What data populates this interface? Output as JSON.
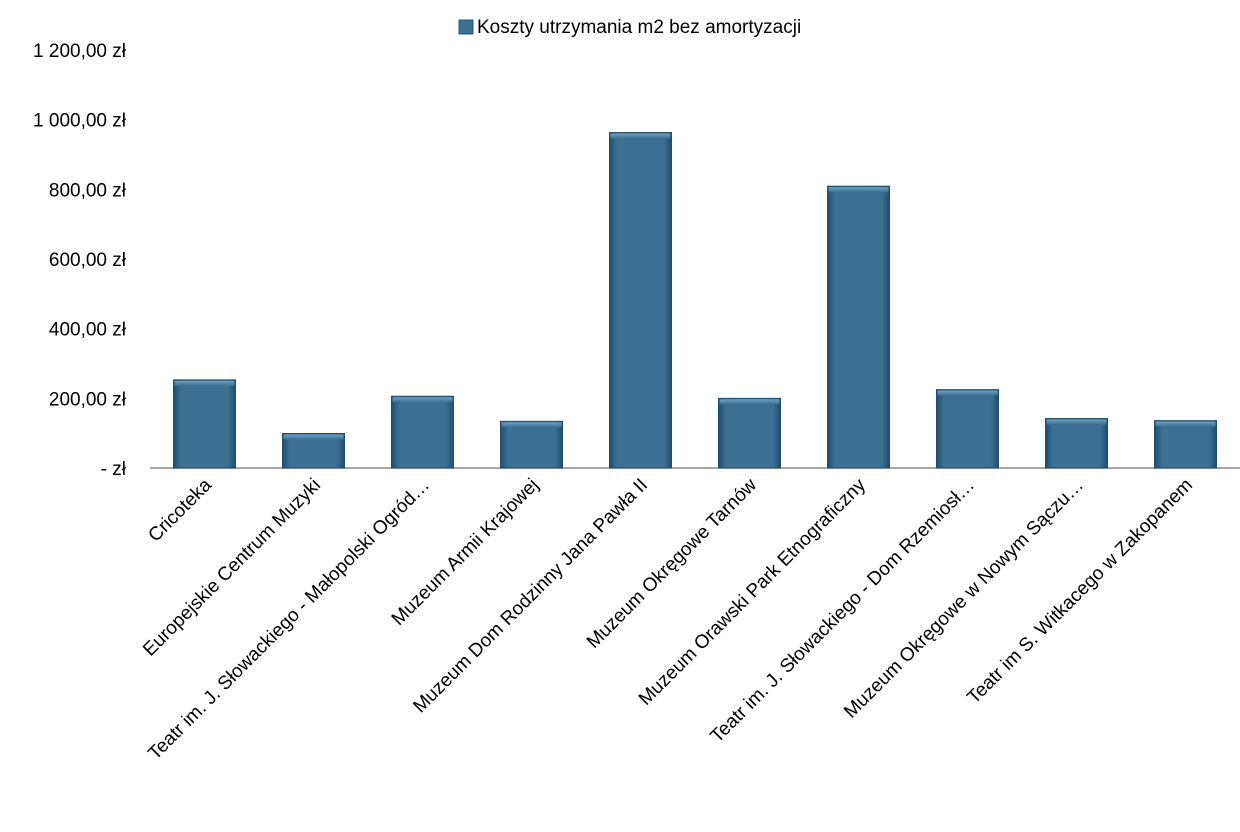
{
  "chart_data": {
    "type": "bar",
    "title": "",
    "xlabel": "",
    "ylabel": "",
    "ylim": [
      0,
      1200
    ],
    "y_ticks": [
      0,
      200,
      400,
      600,
      800,
      1000,
      1200
    ],
    "y_tick_labels": [
      "-  zł",
      "200,00 zł",
      "400,00 zł",
      "600,00 zł",
      "800,00 zł",
      "1 000,00 zł",
      "1 200,00 zł"
    ],
    "grid": false,
    "legend_position": "top-center",
    "bar_color": "#3A7092",
    "categories": [
      "Cricoteka",
      "Europejskie Centrum Muzyki",
      "Teatr im. J. Słowackiego - Małopolski Ogród…",
      "Muzeum Armii Krajowej",
      "Muzeum Dom Rodzinny Jana Pawła II",
      "Muzeum Okręgowe Tarnów",
      "Muzeum Orawski Park Etnograficzny",
      "Teatr im. J. Słowackiego - Dom Rzemiosł…",
      "Muzeum Okręgowe w Nowym Sączu…",
      "Teatr im S. Witkacego w Zakopanem"
    ],
    "series": [
      {
        "name": "Koszty utrzymania m2 bez amortyzacji",
        "values": [
          253,
          99,
          206,
          134,
          963,
          200,
          809,
          225,
          142,
          136
        ]
      }
    ]
  }
}
